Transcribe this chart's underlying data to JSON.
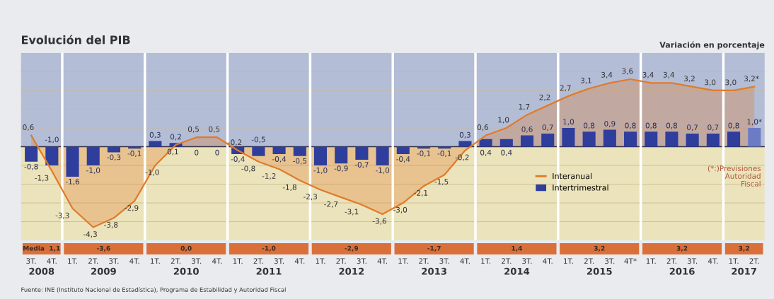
{
  "chart_data": {
    "type": "bar",
    "title": "Evolución del PIB",
    "subtitle": "Variación en porcentaje",
    "categories": [
      "3T.",
      "4T.",
      "1T.",
      "2T.",
      "3T.",
      "4T.",
      "1T.",
      "2T.",
      "3T.",
      "4T.",
      "1T.",
      "2T.",
      "3T.",
      "4T.",
      "1T.",
      "2T.",
      "3T.",
      "4T.",
      "1T.",
      "2T.",
      "3T.",
      "4T.",
      "1T.",
      "2T.",
      "3T.",
      "4T.",
      "1T.",
      "2T.",
      "3T.",
      "4T*",
      "1T.",
      "2T.",
      "3T.",
      "4T.",
      "1T.",
      "2T."
    ],
    "series": [
      {
        "name": "Interanual",
        "type": "area",
        "color": "#e07b2a",
        "values": [
          0.6,
          -1.3,
          -3.3,
          -4.3,
          -3.8,
          -2.9,
          -1.0,
          0.1,
          0.5,
          0.5,
          -0.2,
          -0.8,
          -1.2,
          -1.8,
          -2.3,
          -2.7,
          -3.1,
          -3.6,
          -3.0,
          -2.1,
          -1.5,
          -0.2,
          0.6,
          1.0,
          1.7,
          2.2,
          2.7,
          3.1,
          3.4,
          3.6,
          3.4,
          3.4,
          3.2,
          3.0,
          3.0,
          3.2
        ],
        "value_labels": [
          "0,6",
          "-1,3",
          "-3,3",
          "-4,3",
          "-3,8",
          "-2,9",
          "-1,0",
          "0,1",
          "0,5",
          "0,5",
          "-0,2",
          "-0,8",
          "-1,2",
          "-1,8",
          "-2,3",
          "-2,7",
          "-3,1",
          "-3,6",
          "-3,0",
          "-2,1",
          "-1,5",
          "-0,2",
          "0,6",
          "1,0",
          "1,7",
          "2,2",
          "2,7",
          "3,1",
          "3,4",
          "3,6",
          "3,4",
          "3,4",
          "3,2",
          "3,0",
          "3,0",
          "3,2*"
        ]
      },
      {
        "name": "Intertrimestral",
        "color": "#2f3d9c",
        "colors": [
          "#2f3d9c",
          "#2f3d9c",
          "#2f3d9c",
          "#2f3d9c",
          "#2f3d9c",
          "#2f3d9c",
          "#2f3d9c",
          "#2f3d9c",
          "#2f3d9c",
          "#2f3d9c",
          "#2f3d9c",
          "#2f3d9c",
          "#2f3d9c",
          "#2f3d9c",
          "#2f3d9c",
          "#2f3d9c",
          "#2f3d9c",
          "#2f3d9c",
          "#2f3d9c",
          "#2f3d9c",
          "#2f3d9c",
          "#2f3d9c",
          "#2f3d9c",
          "#2f3d9c",
          "#2f3d9c",
          "#2f3d9c",
          "#2f3d9c",
          "#2f3d9c",
          "#2f3d9c",
          "#2f3d9c",
          "#2f3d9c",
          "#2f3d9c",
          "#2f3d9c",
          "#2f3d9c",
          "#2f3d9c",
          "#6b7cc4"
        ],
        "values": [
          -0.8,
          -1.0,
          -1.6,
          -1.0,
          -0.3,
          -0.1,
          0.3,
          0.2,
          0,
          0,
          -0.4,
          -0.5,
          -0.4,
          -0.5,
          -1.0,
          -0.9,
          -0.7,
          -1.0,
          -0.4,
          -0.1,
          -0.1,
          0.3,
          0.4,
          0.4,
          0.6,
          0.7,
          1.0,
          0.8,
          0.9,
          0.8,
          0.8,
          0.8,
          0.7,
          0.7,
          0.8,
          1.0
        ],
        "value_labels": [
          "-0,8",
          "-1,0",
          "-1,6",
          "-1,0",
          "-0,3",
          "-0,1",
          "0,3",
          "0,2",
          "0",
          "0",
          "-0,4",
          "-0,5",
          "-0,4",
          "-0,5",
          "-1,0",
          "-0,9",
          "-0,7",
          "-1,0",
          "-0,4",
          "-0,1",
          "-0,1",
          "0,3",
          "0,4",
          "0,4",
          "0,6",
          "0,7",
          "1,0",
          "0,8",
          "0,9",
          "0,8",
          "0,8",
          "0,8",
          "0,7",
          "0,7",
          "0,8",
          "1,0*"
        ]
      }
    ],
    "ylim": [
      -5.0,
      5.0
    ],
    "yticks": [
      {
        "value": -4,
        "label": null
      },
      {
        "value": -3,
        "label": null
      },
      {
        "value": -2,
        "label": null
      },
      {
        "value": -1,
        "label": null
      },
      {
        "value": 0,
        "label": null
      },
      {
        "value": 1,
        "label": null
      },
      {
        "value": 2,
        "label": null
      },
      {
        "value": 3,
        "label": null
      },
      {
        "value": 4,
        "label": null
      }
    ],
    "tick_labels": "x",
    "grid": "y",
    "legend": "bottom right",
    "bands": [
      {
        "axis": "y",
        "from": 0,
        "to": 5.0,
        "color": "#b4bdd6"
      },
      {
        "axis": "y",
        "from": -5.0,
        "to": 0,
        "color": "#ebe3bb"
      }
    ],
    "annotations": [
      "2008",
      "2009",
      "2010",
      "2011",
      "2012",
      "2013",
      "2014",
      "2015",
      "2016",
      "2017",
      "Media  1,1",
      "-3,6",
      "0,0",
      "-1,0",
      "-2,9",
      "-1,7",
      "1,4",
      "3,2",
      "3,2",
      "3,2",
      "(*:)Previsiones\nAutoridad\nFiscal",
      "Fuente: INE (Instituto Nacional de Estadística), Programa de Estabilidad y Autoridad Fiscal"
    ]
  }
}
